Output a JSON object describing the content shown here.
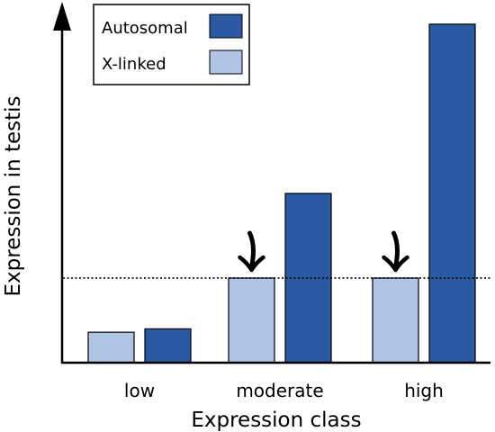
{
  "chart_data": {
    "type": "bar",
    "title": "",
    "xlabel": "Expression class",
    "ylabel": "Expression in testis",
    "categories": [
      "low",
      "moderate",
      "high"
    ],
    "series": [
      {
        "name": "X-linked",
        "values": [
          0.09,
          0.25,
          0.25
        ]
      },
      {
        "name": "Autosomal",
        "values": [
          0.1,
          0.5,
          1.0
        ]
      }
    ],
    "ylim": [
      0,
      1.05
    ],
    "reference_line": 0.25,
    "arrow_categories": [
      "moderate",
      "high"
    ],
    "grid": false,
    "legend_position": "top-left",
    "legend_order": [
      "Autosomal",
      "X-linked"
    ],
    "colors": {
      "Autosomal": "#2a5aa2",
      "X-linked": "#b0c4e6"
    }
  }
}
